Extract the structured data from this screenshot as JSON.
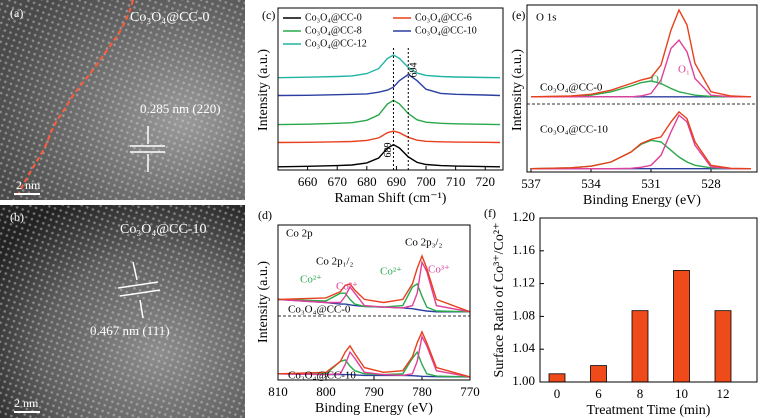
{
  "images": [
    {
      "label": "(a)",
      "title": "Co₃O₄@CC-0",
      "annotation": "0.285 nm (220)",
      "scale_bar": "2 nm"
    },
    {
      "label": "(b)",
      "title": "Co₃O₄@CC-10",
      "annotation": "0.467 nm (111)",
      "scale_bar": "2 nm"
    }
  ],
  "chart_data": [
    {
      "type": "line",
      "panel_label": "(c)",
      "x_label": "Raman Shift (cm⁻¹)",
      "y_label": "Intensity (a.u.)",
      "xlim": [
        650,
        726
      ],
      "xticks": [
        660,
        670,
        680,
        690,
        700,
        710,
        720
      ],
      "ylim": [
        0,
        100
      ],
      "legend": "upper left",
      "x": [
        650,
        660,
        670,
        675,
        680,
        684,
        687,
        689,
        691,
        694,
        697,
        700,
        705,
        710,
        720,
        725
      ],
      "series": [
        {
          "name": "Co₃O₄@CC-0",
          "color": "#000000",
          "values": [
            2,
            2.3,
            2.7,
            3.1,
            4.4,
            7.4,
            13.6,
            15.6,
            13.6,
            8.1,
            4.7,
            3.4,
            2.7,
            2.4,
            2.1,
            2
          ]
        },
        {
          "name": "Co₃O₄@CC-6",
          "color": "#e8401c",
          "values": [
            17,
            17.1,
            17.4,
            17.6,
            18.3,
            19.8,
            23,
            24,
            23,
            20.2,
            18.4,
            17.7,
            17.4,
            17.2,
            17.1,
            17
          ]
        },
        {
          "name": "Co₃O₄@CC-8",
          "color": "#2aa84a",
          "values": [
            28,
            28.3,
            28.8,
            29.2,
            30.7,
            34,
            40.8,
            43,
            40.8,
            34.8,
            31,
            29.5,
            28.8,
            28.5,
            28.2,
            28
          ]
        },
        {
          "name": "Co₃O₄@CC-10",
          "color": "#2b3fa0",
          "values": [
            46,
            46.1,
            46.5,
            46.7,
            47,
            48,
            49.3,
            51.2,
            55.1,
            59,
            55.1,
            49.9,
            47.3,
            46.7,
            46.3,
            46
          ]
        },
        {
          "name": "Co₃O₄@CC-12",
          "color": "#22b3a5",
          "values": [
            57,
            57.3,
            57.7,
            58.1,
            59.5,
            62.6,
            68.9,
            71,
            68.9,
            63.3,
            59.8,
            58.4,
            57.7,
            57.4,
            57.1,
            57
          ]
        }
      ],
      "reference_lines": [
        {
          "value": 689,
          "label": "689"
        },
        {
          "value": 694,
          "label": "694"
        }
      ]
    },
    {
      "type": "line",
      "panel_label": "(d)",
      "x_label": "Binding Energy (eV)",
      "y_label": "Intensity (a.u.)",
      "xlim": [
        810,
        770
      ],
      "xticks": [
        810,
        800,
        790,
        780,
        770
      ],
      "ylim": [
        0,
        100
      ],
      "x": [
        810,
        800,
        797,
        796,
        795,
        794,
        792,
        788,
        784,
        782,
        781,
        780,
        779,
        777,
        770
      ],
      "series": [
        {
          "color": "#2b3fa0",
          "values": [
            52,
            50,
            49,
            49,
            48.5,
            48,
            47.5,
            47,
            46.5,
            46,
            45.5,
            45,
            44.5,
            44,
            44
          ]
        },
        {
          "color": "#2aa84a",
          "values": [
            52,
            51,
            56,
            56,
            52,
            49,
            47.5,
            47,
            48,
            60,
            62,
            54,
            47,
            44.5,
            44
          ]
        },
        {
          "color": "#e0409a",
          "values": [
            52,
            50,
            50,
            54,
            60,
            56,
            48,
            47,
            46.5,
            48,
            56,
            76,
            70,
            48,
            44
          ]
        },
        {
          "color": "#e8401c",
          "values": [
            52,
            53,
            57,
            61,
            62,
            58,
            52,
            50,
            52,
            62,
            72,
            80,
            72,
            52,
            44
          ]
        },
        {
          "color": "#2b3fa0",
          "values": [
            4,
            3.5,
            3.5,
            3.5,
            3.5,
            3.3,
            3,
            3,
            3,
            2.8,
            2.6,
            2.4,
            2.3,
            2.1,
            2
          ]
        },
        {
          "color": "#2aa84a",
          "values": [
            4,
            4,
            12,
            13,
            9,
            6,
            4,
            3.5,
            4,
            14,
            18,
            10,
            4,
            2.5,
            2
          ]
        },
        {
          "color": "#e0409a",
          "values": [
            4,
            3.5,
            4,
            10,
            18,
            14,
            5,
            3.5,
            3,
            4,
            12,
            28,
            22,
            6,
            2
          ]
        },
        {
          "color": "#e8401c",
          "values": [
            4,
            5,
            12,
            18,
            22,
            17,
            8,
            5,
            6,
            15,
            24,
            31,
            24,
            8,
            2
          ]
        }
      ],
      "annotations": [
        {
          "text": "Co 2p",
          "color": "#000000"
        },
        {
          "text": "Co 2p₁/₂",
          "color": "#000000"
        },
        {
          "text": "Co 2p₃/₂",
          "color": "#000000"
        },
        {
          "text": "Co²⁺",
          "color": "#2aa84a"
        },
        {
          "text": "Co³⁺",
          "color": "#e0409a"
        },
        {
          "text": "Co²⁺",
          "color": "#2aa84a"
        },
        {
          "text": "Co³⁺",
          "color": "#e0409a"
        },
        {
          "text": "Co₃O₄@CC-0",
          "color": "#000000"
        },
        {
          "text": "Co₃O₄@CC-10",
          "color": "#000000"
        }
      ]
    },
    {
      "type": "line",
      "panel_label": "(e)",
      "x_label": "Binding Energy (eV)",
      "y_label": "Intensity (a.u.)",
      "xlim": [
        537.2,
        525.7
      ],
      "xticks": [
        537,
        534,
        531,
        528
      ],
      "ylim": [
        0,
        100
      ],
      "x": [
        537,
        535,
        534,
        533,
        532,
        531.5,
        531,
        530.5,
        530,
        529.6,
        529.2,
        528.8,
        528,
        527,
        526
      ],
      "series": [
        {
          "color": "#2b3fa0",
          "values": [
            45,
            45,
            45,
            45,
            45,
            45,
            45,
            45,
            45,
            45,
            45,
            45,
            45,
            45,
            45
          ]
        },
        {
          "color": "#2aa84a",
          "values": [
            45,
            45.3,
            46,
            48,
            51.5,
            53.5,
            54.5,
            53,
            50,
            48,
            47,
            46,
            45.2,
            45,
            45
          ]
        },
        {
          "color": "#e0409a",
          "values": [
            45,
            45,
            45,
            45,
            45,
            45.5,
            47,
            55,
            74,
            79,
            72,
            56,
            46,
            45,
            45
          ]
        },
        {
          "color": "#e8401c",
          "values": [
            45,
            45.5,
            46.5,
            49,
            53,
            55,
            56.5,
            64,
            85,
            97,
            88,
            65,
            48,
            45.5,
            45
          ]
        },
        {
          "color": "#2b3fa0",
          "values": [
            2,
            2,
            2,
            2,
            2,
            2,
            2,
            2,
            2,
            2,
            2,
            2,
            2,
            2,
            2
          ]
        },
        {
          "color": "#2aa84a",
          "values": [
            2,
            2.5,
            3.5,
            6,
            12,
            16.5,
            19,
            18,
            13,
            9,
            6,
            4,
            2.5,
            2,
            2
          ]
        },
        {
          "color": "#e0409a",
          "values": [
            2,
            2,
            2,
            2,
            2.2,
            2.8,
            4,
            10,
            24,
            34,
            30,
            16,
            3,
            2,
            2
          ]
        },
        {
          "color": "#e8401c",
          "values": [
            2,
            2.5,
            3.5,
            6,
            12,
            17,
            19.5,
            21,
            30,
            36,
            32,
            18,
            4,
            2.2,
            2
          ]
        }
      ],
      "annotations": [
        {
          "text": "O 1s",
          "color": "#000000"
        },
        {
          "text": "O₂",
          "color": "#2aa84a"
        },
        {
          "text": "O₁",
          "color": "#e0409a"
        },
        {
          "text": "Co₃O₄@CC-0",
          "color": "#000000"
        },
        {
          "text": "Co₃O₄@CC-10",
          "color": "#000000"
        }
      ]
    },
    {
      "type": "bar",
      "panel_label": "(f)",
      "x_label": "Treatment Time (min)",
      "y_label": "Surface Ratio of Co³⁺/Co²⁺",
      "categories": [
        "0",
        "6",
        "8",
        "10",
        "12"
      ],
      "values": [
        1.01,
        1.02,
        1.087,
        1.136,
        1.087
      ],
      "color": "#ee4a1a",
      "ylim": [
        1.0,
        1.2
      ],
      "yticks": [
        {
          "value": 1.0,
          "label": "1.00"
        },
        {
          "value": 1.04,
          "label": "1.04"
        },
        {
          "value": 1.08,
          "label": "1.08"
        },
        {
          "value": 1.12,
          "label": "1.12"
        },
        {
          "value": 1.16,
          "label": "1.16"
        },
        {
          "value": 1.2,
          "label": "1.20"
        }
      ]
    }
  ]
}
